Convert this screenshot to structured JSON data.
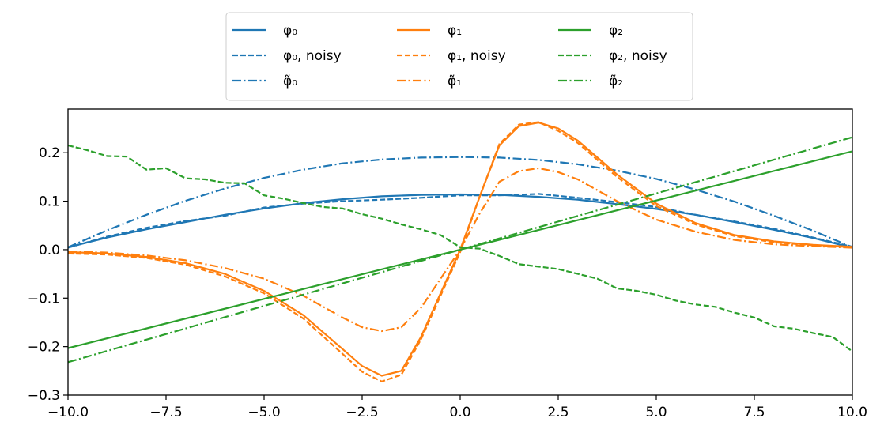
{
  "chart_data": {
    "type": "line",
    "title": "",
    "xlabel": "",
    "ylabel": "",
    "xlim": [
      -10,
      10
    ],
    "ylim": [
      -0.3,
      0.29
    ],
    "x_ticks": [
      -10.0,
      -7.5,
      -5.0,
      -2.5,
      0.0,
      2.5,
      5.0,
      7.5,
      10.0
    ],
    "x_tick_labels": [
      "−10.0",
      "−7.5",
      "−5.0",
      "−2.5",
      "0.0",
      "2.5",
      "5.0",
      "7.5",
      "10.0"
    ],
    "y_ticks": [
      -0.3,
      -0.2,
      -0.1,
      0.0,
      0.1,
      0.2
    ],
    "y_tick_labels": [
      "−0.3",
      "−0.2",
      "−0.1",
      "0.0",
      "0.1",
      "0.2"
    ],
    "grid": false,
    "legend": {
      "placement": "top-center, above axes",
      "columns": 3
    },
    "series": [
      {
        "name": "φ₀",
        "color": "#1f77b4",
        "style": "solid",
        "x": [
          -10,
          -9,
          -8,
          -7,
          -6,
          -5,
          -4,
          -3,
          -2,
          -1,
          0,
          1,
          2,
          3,
          4,
          5,
          6,
          7,
          8,
          9,
          10
        ],
        "y": [
          0.005,
          0.025,
          0.042,
          0.057,
          0.072,
          0.085,
          0.096,
          0.104,
          0.11,
          0.113,
          0.114,
          0.113,
          0.109,
          0.103,
          0.094,
          0.084,
          0.072,
          0.057,
          0.041,
          0.024,
          0.004
        ]
      },
      {
        "name": "φ₀, noisy",
        "color": "#1f77b4",
        "style": "dashed",
        "x": [
          -10,
          -9,
          -8,
          -7,
          -6,
          -5,
          -4,
          -3,
          -2,
          -1,
          0,
          1,
          2,
          3,
          4,
          5,
          6,
          7,
          8,
          9,
          10
        ],
        "y": [
          0.004,
          0.027,
          0.045,
          0.059,
          0.07,
          0.087,
          0.095,
          0.1,
          0.103,
          0.107,
          0.112,
          0.112,
          0.115,
          0.107,
          0.098,
          0.088,
          0.072,
          0.058,
          0.043,
          0.025,
          0.006
        ]
      },
      {
        "name": "φ̃₀",
        "color": "#1f77b4",
        "style": "dashdot",
        "x": [
          -10,
          -9,
          -8,
          -7,
          -6,
          -5,
          -4,
          -3,
          -2,
          -1,
          0,
          1,
          2,
          3,
          4,
          5,
          6,
          7,
          8,
          9,
          10
        ],
        "y": [
          0.005,
          0.04,
          0.072,
          0.101,
          0.126,
          0.148,
          0.165,
          0.178,
          0.186,
          0.19,
          0.191,
          0.19,
          0.185,
          0.176,
          0.163,
          0.146,
          0.124,
          0.099,
          0.07,
          0.039,
          0.005
        ]
      },
      {
        "name": "φ₁",
        "color": "#ff7f0e",
        "style": "solid",
        "x": [
          -10,
          -9,
          -8,
          -7,
          -6,
          -5,
          -4,
          -3,
          -2.5,
          -2,
          -1.5,
          -1,
          -0.5,
          0,
          0.5,
          1,
          1.5,
          2,
          2.5,
          3,
          4,
          5,
          6,
          7,
          8,
          9,
          10
        ],
        "y": [
          -0.005,
          -0.008,
          -0.015,
          -0.028,
          -0.05,
          -0.085,
          -0.135,
          -0.205,
          -0.24,
          -0.26,
          -0.25,
          -0.18,
          -0.09,
          0.0,
          0.11,
          0.215,
          0.255,
          0.262,
          0.25,
          0.225,
          0.155,
          0.095,
          0.055,
          0.03,
          0.017,
          0.01,
          0.006
        ]
      },
      {
        "name": "φ₁, noisy",
        "color": "#ff7f0e",
        "style": "dashed",
        "x": [
          -10,
          -9,
          -8,
          -7,
          -6,
          -5,
          -4,
          -3,
          -2.5,
          -2,
          -1.5,
          -1,
          -0.5,
          0,
          0.5,
          1,
          1.5,
          2,
          2.5,
          3,
          4,
          5,
          6,
          7,
          8,
          9,
          10
        ],
        "y": [
          -0.008,
          -0.01,
          -0.017,
          -0.031,
          -0.055,
          -0.09,
          -0.142,
          -0.215,
          -0.252,
          -0.272,
          -0.258,
          -0.185,
          -0.095,
          -0.005,
          0.11,
          0.218,
          0.258,
          0.263,
          0.245,
          0.22,
          0.15,
          0.09,
          0.052,
          0.028,
          0.015,
          0.009,
          0.005
        ]
      },
      {
        "name": "φ̃₁",
        "color": "#ff7f0e",
        "style": "dashdot",
        "x": [
          -10,
          -9,
          -8,
          -7,
          -6,
          -5,
          -4,
          -3,
          -2.5,
          -2,
          -1.5,
          -1,
          -0.5,
          0,
          0.5,
          1,
          1.5,
          2,
          2.5,
          3,
          4,
          5,
          6,
          7,
          8,
          9,
          10
        ],
        "y": [
          -0.004,
          -0.006,
          -0.012,
          -0.022,
          -0.038,
          -0.06,
          -0.095,
          -0.14,
          -0.16,
          -0.168,
          -0.16,
          -0.12,
          -0.06,
          0.0,
          0.075,
          0.14,
          0.162,
          0.168,
          0.16,
          0.145,
          0.1,
          0.062,
          0.037,
          0.02,
          0.011,
          0.007,
          0.004
        ]
      },
      {
        "name": "φ₂",
        "color": "#2ca02c",
        "style": "solid",
        "x": [
          -10,
          10
        ],
        "y": [
          -0.203,
          0.203
        ]
      },
      {
        "name": "φ₂, noisy",
        "color": "#2ca02c",
        "style": "dashed",
        "x": [
          -10,
          -9.5,
          -9,
          -8.5,
          -8,
          -7.5,
          -7,
          -6.5,
          -6,
          -5.5,
          -5,
          -4.5,
          -4,
          -3.5,
          -3,
          -2.5,
          -2,
          -1.5,
          -1,
          -0.5,
          0,
          0.5,
          1,
          1.5,
          2,
          2.5,
          3,
          3.5,
          4,
          4.5,
          5,
          5.5,
          6,
          6.5,
          7,
          7.5,
          8,
          8.5,
          9,
          9.5,
          10
        ],
        "y": [
          0.215,
          0.205,
          0.193,
          0.192,
          0.165,
          0.168,
          0.147,
          0.145,
          0.138,
          0.137,
          0.112,
          0.105,
          0.096,
          0.088,
          0.085,
          0.073,
          0.064,
          0.052,
          0.042,
          0.03,
          0.005,
          0.002,
          -0.013,
          -0.03,
          -0.035,
          -0.04,
          -0.05,
          -0.06,
          -0.08,
          -0.085,
          -0.093,
          -0.105,
          -0.113,
          -0.118,
          -0.13,
          -0.14,
          -0.158,
          -0.163,
          -0.172,
          -0.18,
          -0.21
        ]
      },
      {
        "name": "φ̃₂",
        "color": "#2ca02c",
        "style": "dashdot",
        "x": [
          -10,
          10
        ],
        "y": [
          -0.232,
          0.232
        ]
      }
    ]
  }
}
